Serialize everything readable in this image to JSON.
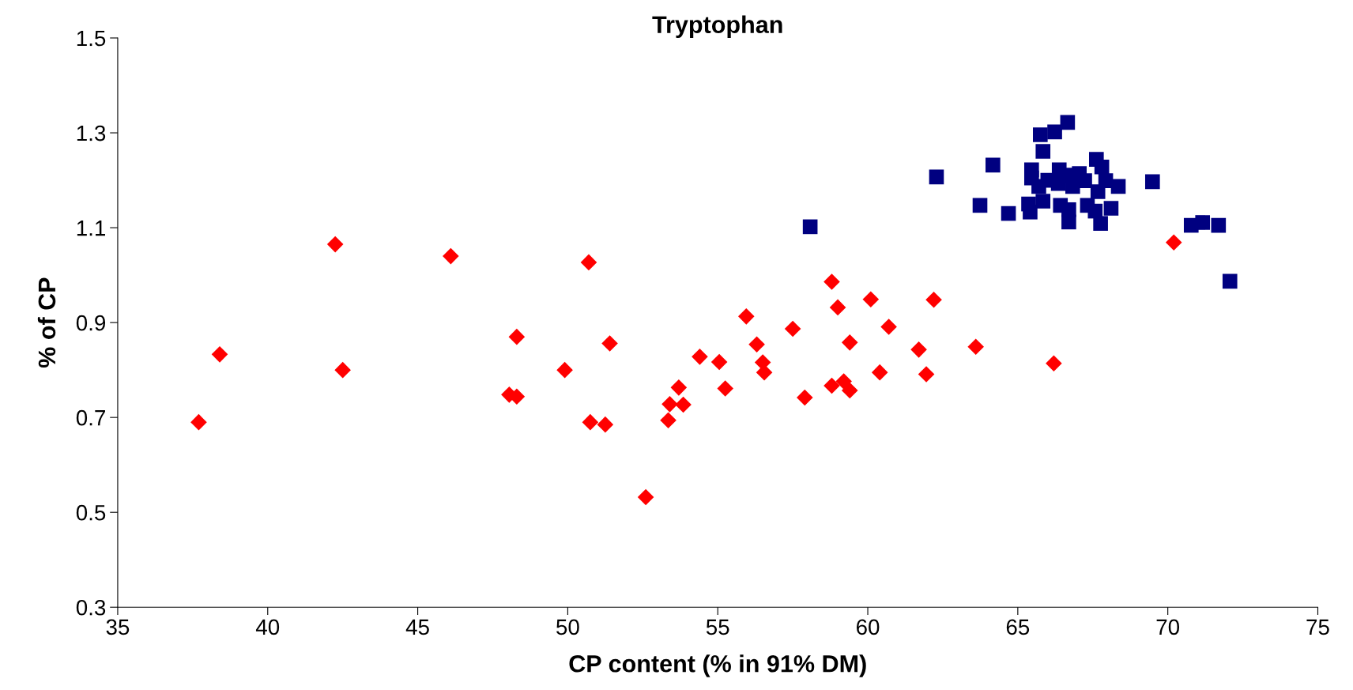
{
  "chart_data": {
    "type": "scatter",
    "title": "Tryptophan",
    "xlabel": "CP content (% in 91% DM)",
    "ylabel": "% of CP",
    "xlim": [
      35,
      75
    ],
    "xticks": [
      35,
      40,
      45,
      50,
      55,
      60,
      65,
      70,
      75
    ],
    "ylim": [
      0.3,
      1.5
    ],
    "yticks": [
      0.3,
      0.5,
      0.7,
      0.9,
      1.1,
      1.3,
      1.5
    ],
    "grid": false,
    "legend": false,
    "series": [
      {
        "color": "#ff0000",
        "marker": "diamond",
        "x": [
          37.7,
          38.4,
          42.25,
          42.5,
          46.1,
          48.3,
          48.05,
          48.3,
          49.9,
          50.7,
          50.75,
          51.25,
          51.4,
          52.6,
          53.35,
          53.4,
          53.7,
          53.85,
          54.4,
          55.05,
          55.25,
          55.95,
          56.3,
          56.5,
          56.55,
          57.5,
          57.9,
          58.8,
          58.8,
          59.0,
          59.2,
          59.4,
          59.4,
          60.1,
          60.4,
          60.7,
          61.7,
          61.95,
          62.2,
          63.6,
          66.2,
          70.2
        ],
        "values": [
          0.69,
          0.833,
          1.065,
          0.8,
          1.04,
          0.87,
          0.748,
          0.744,
          0.8,
          1.027,
          0.69,
          0.685,
          0.856,
          0.532,
          0.694,
          0.728,
          0.763,
          0.727,
          0.828,
          0.817,
          0.761,
          0.913,
          0.854,
          0.816,
          0.795,
          0.887,
          0.742,
          0.767,
          0.986,
          0.932,
          0.776,
          0.858,
          0.757,
          0.949,
          0.795,
          0.891,
          0.843,
          0.791,
          0.948,
          0.849,
          0.814,
          1.069
        ]
      },
      {
        "color": "#000080",
        "marker": "square",
        "x": [
          58.08,
          62.29,
          64.17,
          63.74,
          64.69,
          65.75,
          66.23,
          66.66,
          65.84,
          65.46,
          65.46,
          65.7,
          65.36,
          65.41,
          65.84,
          66.0,
          66.38,
          66.35,
          66.7,
          66.83,
          67.05,
          67.23,
          66.42,
          66.7,
          66.7,
          67.32,
          67.62,
          67.8,
          67.93,
          67.67,
          68.35,
          68.11,
          67.76,
          67.58,
          69.49,
          70.78,
          71.16,
          71.69,
          72.07
        ],
        "values": [
          1.102,
          1.207,
          1.232,
          1.147,
          1.13,
          1.296,
          1.302,
          1.322,
          1.261,
          1.222,
          1.205,
          1.187,
          1.15,
          1.133,
          1.156,
          1.2,
          1.222,
          1.193,
          1.211,
          1.187,
          1.214,
          1.199,
          1.147,
          1.138,
          1.112,
          1.147,
          1.244,
          1.228,
          1.199,
          1.176,
          1.187,
          1.141,
          1.109,
          1.135,
          1.197,
          1.105,
          1.111,
          1.105,
          0.987
        ]
      }
    ]
  }
}
